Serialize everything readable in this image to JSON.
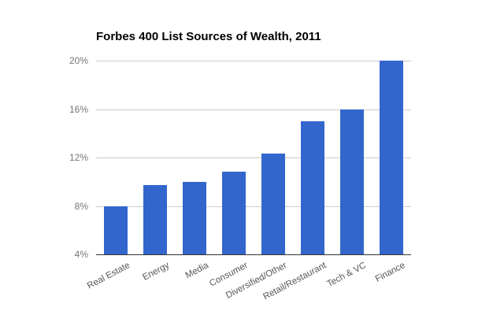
{
  "chart_data": {
    "type": "bar",
    "title": "Forbes 400 List Sources of Wealth, 2011",
    "categories": [
      "Real Estate",
      "Energy",
      "Media",
      "Consumer",
      "Diversified/Other",
      "Retail/Restaurant",
      "Tech & VC",
      "Finance"
    ],
    "values": [
      8,
      9.7,
      10,
      10.8,
      12.3,
      15,
      16,
      20
    ],
    "unit": "%",
    "xlabel": "",
    "ylabel": "",
    "ylim": [
      4,
      20
    ],
    "yticks": [
      4,
      8,
      12,
      16,
      20
    ],
    "ytick_labels": [
      "4%",
      "8%",
      "12%",
      "16%",
      "20%"
    ],
    "grid": true,
    "legend": "none",
    "colors": {
      "bar": "#3366cc",
      "gridline": "#cccccc",
      "axis_line": "#333333",
      "y_tick_text": "#757575",
      "x_tick_text": "#555555",
      "title_text": "#000000",
      "background": "#ffffff"
    }
  }
}
